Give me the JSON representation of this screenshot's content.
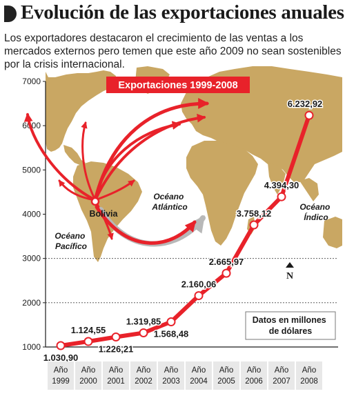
{
  "header": {
    "title": "Evolución de las exportaciones anuales",
    "subtitle": "Los exportadores destacaron el crecimiento de las ventas a los mercados externos pero temen que este año 2009 no sean sostenibles por la crisis internacional."
  },
  "map": {
    "banner": "Exportaciones 1999-2008",
    "origin": "Bolivia",
    "ocean_atlantic": [
      "Océano",
      "Atlántico"
    ],
    "ocean_pacific": [
      "Océano",
      "Pacífico"
    ],
    "ocean_indian": [
      "Océano",
      "Índico"
    ],
    "north_label": "N",
    "note": [
      "Datos en millones",
      "de dólares"
    ]
  },
  "colors": {
    "line": "#e8222a",
    "banner": "#e8222a",
    "map_land": "#c9a763",
    "map_water": "#ffffff",
    "year_box": "#e8e8e8"
  },
  "chart_data": {
    "type": "line",
    "x": [
      "Año 1999",
      "Año 2000",
      "Año 2001",
      "Año 2002",
      "Año 2003",
      "Año 2004",
      "Año 2005",
      "Año 2006",
      "Año 2007",
      "Año 2008"
    ],
    "x_labels": [
      [
        "Año",
        "1999"
      ],
      [
        "Año",
        "2000"
      ],
      [
        "Año",
        "2001"
      ],
      [
        "Año",
        "2002"
      ],
      [
        "Año",
        "2003"
      ],
      [
        "Año",
        "2004"
      ],
      [
        "Año",
        "2005"
      ],
      [
        "Año",
        "2006"
      ],
      [
        "Año",
        "2007"
      ],
      [
        "Año",
        "2008"
      ]
    ],
    "values": [
      1030.9,
      1124.55,
      1226.21,
      1319.85,
      1568.48,
      2160.06,
      2665.97,
      3758.12,
      4394.3,
      6232.92
    ],
    "value_labels": [
      "1.030,90",
      "1.124,55",
      "1.226,21",
      "1.319,85",
      "1.568,48",
      "2.160,06",
      "2.665,97",
      "3.758,12",
      "4.394,30",
      "6.232,92"
    ],
    "label_placement": [
      "below",
      "above",
      "below",
      "above",
      "below",
      "above",
      "above",
      "above",
      "above",
      "above"
    ],
    "ylim": [
      1000,
      7000
    ],
    "yticks": [
      1000,
      2000,
      3000,
      4000,
      5000,
      6000,
      7000
    ],
    "ytick_labels": [
      "1000",
      "2000",
      "3000",
      "4000",
      "5000",
      "6000",
      "7000"
    ],
    "dashed_gridlines": [
      2000,
      3000
    ],
    "legend": "none"
  }
}
